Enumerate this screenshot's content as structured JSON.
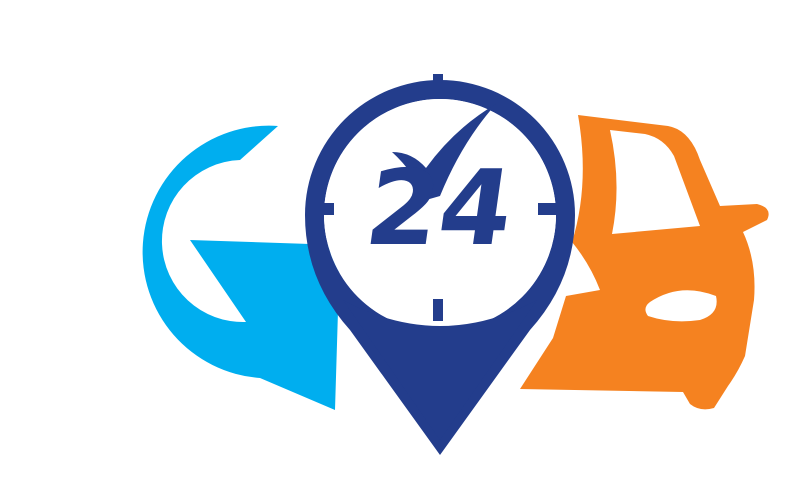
{
  "logo": {
    "text_number": "24",
    "icons": [
      "letter-g-icon",
      "clock-location-pin-icon",
      "checkmark-icon",
      "car-icon"
    ],
    "colors": {
      "letter_g": "#00aeef",
      "pin": "#233d8c",
      "car": "#f58220",
      "background": "#ffffff"
    }
  }
}
